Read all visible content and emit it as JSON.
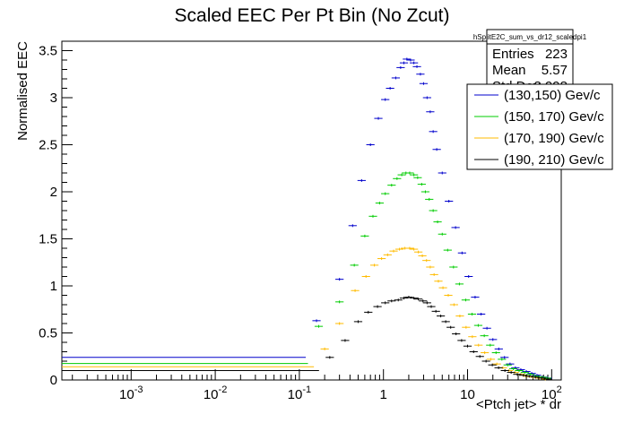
{
  "chart_data": {
    "type": "scatter",
    "title": "Scaled EEC Per Pt Bin (No Zcut)",
    "xlabel": "<Ptch jet> * dr",
    "ylabel": "Normalised EEC",
    "xscale": "log",
    "xlim": [
      0.00015,
      130
    ],
    "ylim": [
      0,
      3.6
    ],
    "x_ticks": [
      "10^-3",
      "10^-2",
      "10^-1",
      "1",
      "10",
      "10^2"
    ],
    "y_ticks": [
      "0",
      "0.5",
      "1",
      "1.5",
      "2",
      "2.5",
      "3",
      "3.5"
    ],
    "grid": false,
    "legend_position": "top-right",
    "stats_box": {
      "name": "hSplitE2C_sum_vs_dr12_scaledpi1",
      "entries_label": "Entries",
      "entries_value": "223",
      "mean_label": "Mean",
      "mean_value": "5.57",
      "stddev_label": "Std Dev",
      "stddev_value": "8.998"
    },
    "series": [
      {
        "name": "(130,150) Gev/c",
        "color": "#0000cc",
        "points": [
          [
            0.0025,
            0.24
          ],
          [
            0.16,
            0.63
          ],
          [
            0.3,
            1.07
          ],
          [
            0.43,
            1.64
          ],
          [
            0.55,
            2.12
          ],
          [
            0.7,
            2.5
          ],
          [
            0.87,
            2.78
          ],
          [
            1.05,
            2.98
          ],
          [
            1.2,
            3.1
          ],
          [
            1.4,
            3.21
          ],
          [
            1.6,
            3.32
          ],
          [
            1.75,
            3.37
          ],
          [
            1.9,
            3.41
          ],
          [
            2.1,
            3.4
          ],
          [
            2.3,
            3.37
          ],
          [
            2.5,
            3.33
          ],
          [
            2.75,
            3.25
          ],
          [
            3.0,
            3.15
          ],
          [
            3.3,
            3.0
          ],
          [
            3.6,
            2.85
          ],
          [
            3.9,
            2.64
          ],
          [
            4.3,
            2.45
          ],
          [
            5.0,
            2.2
          ],
          [
            6.0,
            1.9
          ],
          [
            7.2,
            1.62
          ],
          [
            8.6,
            1.35
          ],
          [
            10.3,
            1.1
          ],
          [
            12.3,
            0.88
          ],
          [
            14.5,
            0.7
          ],
          [
            17.0,
            0.55
          ],
          [
            20.0,
            0.43
          ],
          [
            23.5,
            0.33
          ],
          [
            27.5,
            0.24
          ],
          [
            32.0,
            0.17
          ],
          [
            37.0,
            0.13
          ],
          [
            43.0,
            0.11
          ],
          [
            50.0,
            0.09
          ],
          [
            58.0,
            0.07
          ],
          [
            67.0,
            0.05
          ],
          [
            78.0,
            0.03
          ],
          [
            90.0,
            0.02
          ]
        ]
      },
      {
        "name": "(150, 170) Gev/c",
        "color": "#00cc00",
        "points": [
          [
            0.0025,
            0.175
          ],
          [
            0.17,
            0.57
          ],
          [
            0.3,
            0.83
          ],
          [
            0.45,
            1.22
          ],
          [
            0.6,
            1.53
          ],
          [
            0.75,
            1.74
          ],
          [
            0.9,
            1.88
          ],
          [
            1.05,
            1.98
          ],
          [
            1.25,
            2.07
          ],
          [
            1.45,
            2.14
          ],
          [
            1.65,
            2.18
          ],
          [
            1.85,
            2.2
          ],
          [
            2.05,
            2.2
          ],
          [
            2.3,
            2.18
          ],
          [
            2.55,
            2.15
          ],
          [
            2.85,
            2.08
          ],
          [
            3.15,
            2.0
          ],
          [
            3.5,
            1.92
          ],
          [
            3.9,
            1.8
          ],
          [
            4.4,
            1.68
          ],
          [
            5.0,
            1.55
          ],
          [
            5.8,
            1.38
          ],
          [
            6.8,
            1.2
          ],
          [
            8.0,
            1.02
          ],
          [
            9.5,
            0.85
          ],
          [
            11.3,
            0.7
          ],
          [
            13.4,
            0.58
          ],
          [
            15.8,
            0.47
          ],
          [
            18.6,
            0.37
          ],
          [
            21.8,
            0.29
          ],
          [
            25.6,
            0.22
          ],
          [
            30.0,
            0.16
          ],
          [
            35.0,
            0.12
          ],
          [
            41.0,
            0.1
          ],
          [
            48.0,
            0.08
          ],
          [
            56.0,
            0.06
          ],
          [
            65.0,
            0.04
          ],
          [
            76.0,
            0.03
          ],
          [
            88.0,
            0.02
          ]
        ]
      },
      {
        "name": "(170, 190) Gev/c",
        "color": "#ffbb00",
        "points": [
          [
            0.0025,
            0.14
          ],
          [
            0.2,
            0.33
          ],
          [
            0.3,
            0.6
          ],
          [
            0.46,
            0.95
          ],
          [
            0.62,
            1.1
          ],
          [
            0.78,
            1.22
          ],
          [
            0.95,
            1.29
          ],
          [
            1.12,
            1.33
          ],
          [
            1.32,
            1.37
          ],
          [
            1.55,
            1.39
          ],
          [
            1.8,
            1.4
          ],
          [
            2.05,
            1.4
          ],
          [
            2.3,
            1.39
          ],
          [
            2.6,
            1.36
          ],
          [
            2.9,
            1.32
          ],
          [
            3.25,
            1.27
          ],
          [
            3.6,
            1.2
          ],
          [
            4.0,
            1.12
          ],
          [
            4.5,
            1.05
          ],
          [
            5.1,
            0.98
          ],
          [
            5.9,
            0.9
          ],
          [
            6.9,
            0.8
          ],
          [
            8.1,
            0.68
          ],
          [
            9.6,
            0.56
          ],
          [
            11.4,
            0.46
          ],
          [
            13.5,
            0.37
          ],
          [
            16.0,
            0.29
          ],
          [
            18.9,
            0.22
          ],
          [
            22.3,
            0.17
          ],
          [
            26.3,
            0.13
          ],
          [
            31.0,
            0.1
          ],
          [
            36.5,
            0.08
          ],
          [
            43.0,
            0.06
          ],
          [
            51.0,
            0.04
          ],
          [
            60.0,
            0.03
          ],
          [
            71.0,
            0.02
          ],
          [
            84.0,
            0.01
          ]
        ]
      },
      {
        "name": "(190, 210) Gev/c",
        "color": "#000000",
        "points": [
          [
            0.0025,
            0.1
          ],
          [
            0.23,
            0.24
          ],
          [
            0.35,
            0.42
          ],
          [
            0.5,
            0.62
          ],
          [
            0.66,
            0.72
          ],
          [
            0.85,
            0.78
          ],
          [
            1.05,
            0.82
          ],
          [
            1.25,
            0.84
          ],
          [
            1.5,
            0.85
          ],
          [
            1.75,
            0.87
          ],
          [
            2.0,
            0.88
          ],
          [
            2.3,
            0.87
          ],
          [
            2.6,
            0.86
          ],
          [
            2.95,
            0.84
          ],
          [
            3.3,
            0.82
          ],
          [
            3.7,
            0.78
          ],
          [
            4.2,
            0.73
          ],
          [
            4.8,
            0.68
          ],
          [
            5.5,
            0.62
          ],
          [
            6.3,
            0.56
          ],
          [
            7.3,
            0.49
          ],
          [
            8.5,
            0.42
          ],
          [
            10.0,
            0.36
          ],
          [
            11.8,
            0.3
          ],
          [
            14.0,
            0.25
          ],
          [
            16.6,
            0.2
          ],
          [
            19.7,
            0.16
          ],
          [
            23.4,
            0.13
          ],
          [
            27.8,
            0.1
          ],
          [
            33.0,
            0.08
          ],
          [
            39.0,
            0.06
          ],
          [
            46.0,
            0.05
          ],
          [
            54.0,
            0.04
          ],
          [
            64.0,
            0.03
          ],
          [
            76.0,
            0.02
          ],
          [
            90.0,
            0.01
          ]
        ]
      }
    ]
  }
}
